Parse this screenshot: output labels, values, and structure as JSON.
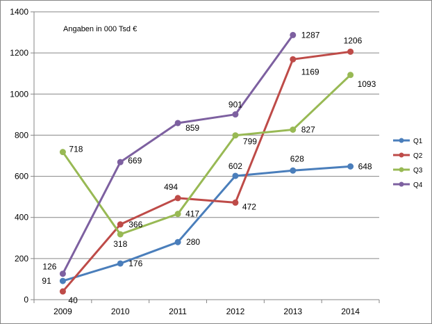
{
  "chart_data": {
    "type": "line",
    "title": "",
    "xlabel": "",
    "ylabel": "",
    "annotation": "Angaben in 000 Tsd €",
    "categories": [
      "2009",
      "2010",
      "2011",
      "2012",
      "2013",
      "2014"
    ],
    "ylim": [
      0,
      1400
    ],
    "yticks": [
      0,
      200,
      400,
      600,
      800,
      1000,
      1200,
      1400
    ],
    "grid": "horizontal",
    "legend_position": "right",
    "series": [
      {
        "name": "Q1",
        "color": "#4A7EBB",
        "values": [
          91,
          176,
          280,
          602,
          628,
          648
        ],
        "labels": [
          "91",
          "176",
          "280",
          "602",
          "628",
          "648"
        ]
      },
      {
        "name": "Q2",
        "color": "#BE4B48",
        "values": [
          40,
          366,
          494,
          472,
          1169,
          1206
        ],
        "labels": [
          "40",
          "366",
          "494",
          "472",
          "1169",
          "1206"
        ]
      },
      {
        "name": "Q3",
        "color": "#98B954",
        "values": [
          718,
          318,
          417,
          799,
          827,
          1093
        ],
        "labels": [
          "718",
          "318",
          "417",
          "799",
          "827",
          "1093"
        ]
      },
      {
        "name": "Q4",
        "color": "#7D60A0",
        "values": [
          126,
          669,
          859,
          901,
          1287,
          null
        ],
        "labels": [
          "126",
          "669",
          "859",
          "901",
          "1287",
          ""
        ]
      }
    ]
  }
}
